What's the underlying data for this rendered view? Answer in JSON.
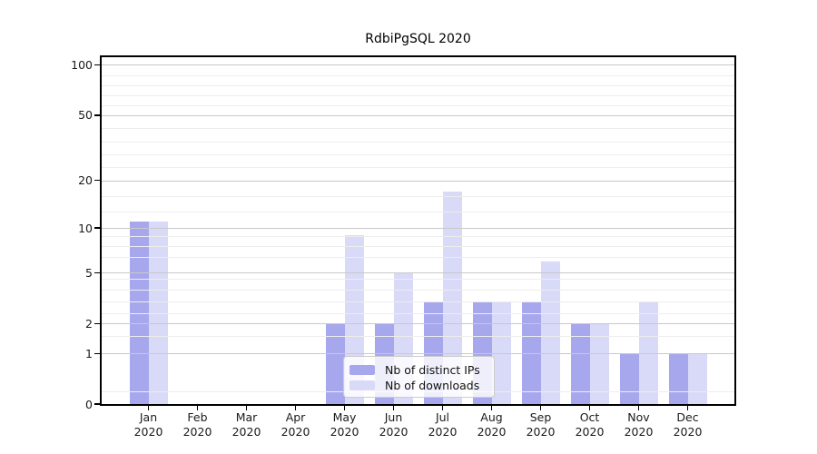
{
  "title": "RdbiPgSQL 2020",
  "chart_data": {
    "type": "bar",
    "title": "RdbiPgSQL 2020",
    "categories": [
      "Jan 2020",
      "Feb 2020",
      "Mar 2020",
      "Apr 2020",
      "May 2020",
      "Jun 2020",
      "Jul 2020",
      "Aug 2020",
      "Sep 2020",
      "Oct 2020",
      "Nov 2020",
      "Dec 2020"
    ],
    "series": [
      {
        "name": "Nb of distinct IPs",
        "color": "#a7a7ee",
        "values": [
          11,
          0,
          0,
          0,
          2,
          2,
          3,
          3,
          3,
          2,
          1,
          1
        ]
      },
      {
        "name": "Nb of downloads",
        "color": "#d9d9f8",
        "values": [
          11,
          0,
          0,
          0,
          9,
          5,
          17,
          3,
          6,
          2,
          3,
          1
        ]
      }
    ],
    "y_ticks": [
      0,
      1,
      2,
      5,
      10,
      20,
      50,
      100
    ],
    "y_scale": "log10(1+value)",
    "ylim": [
      0,
      112
    ],
    "xlabel": "",
    "ylabel": "",
    "grid": true,
    "legend_position": "inside bottom-center"
  },
  "colors": {
    "ips": "#a7a7ee",
    "downloads": "#d9d9f8",
    "grid_major": "#c9c9c9",
    "grid_minor": "#ededed",
    "axis": "#000000",
    "text": "#1a1a1a"
  }
}
